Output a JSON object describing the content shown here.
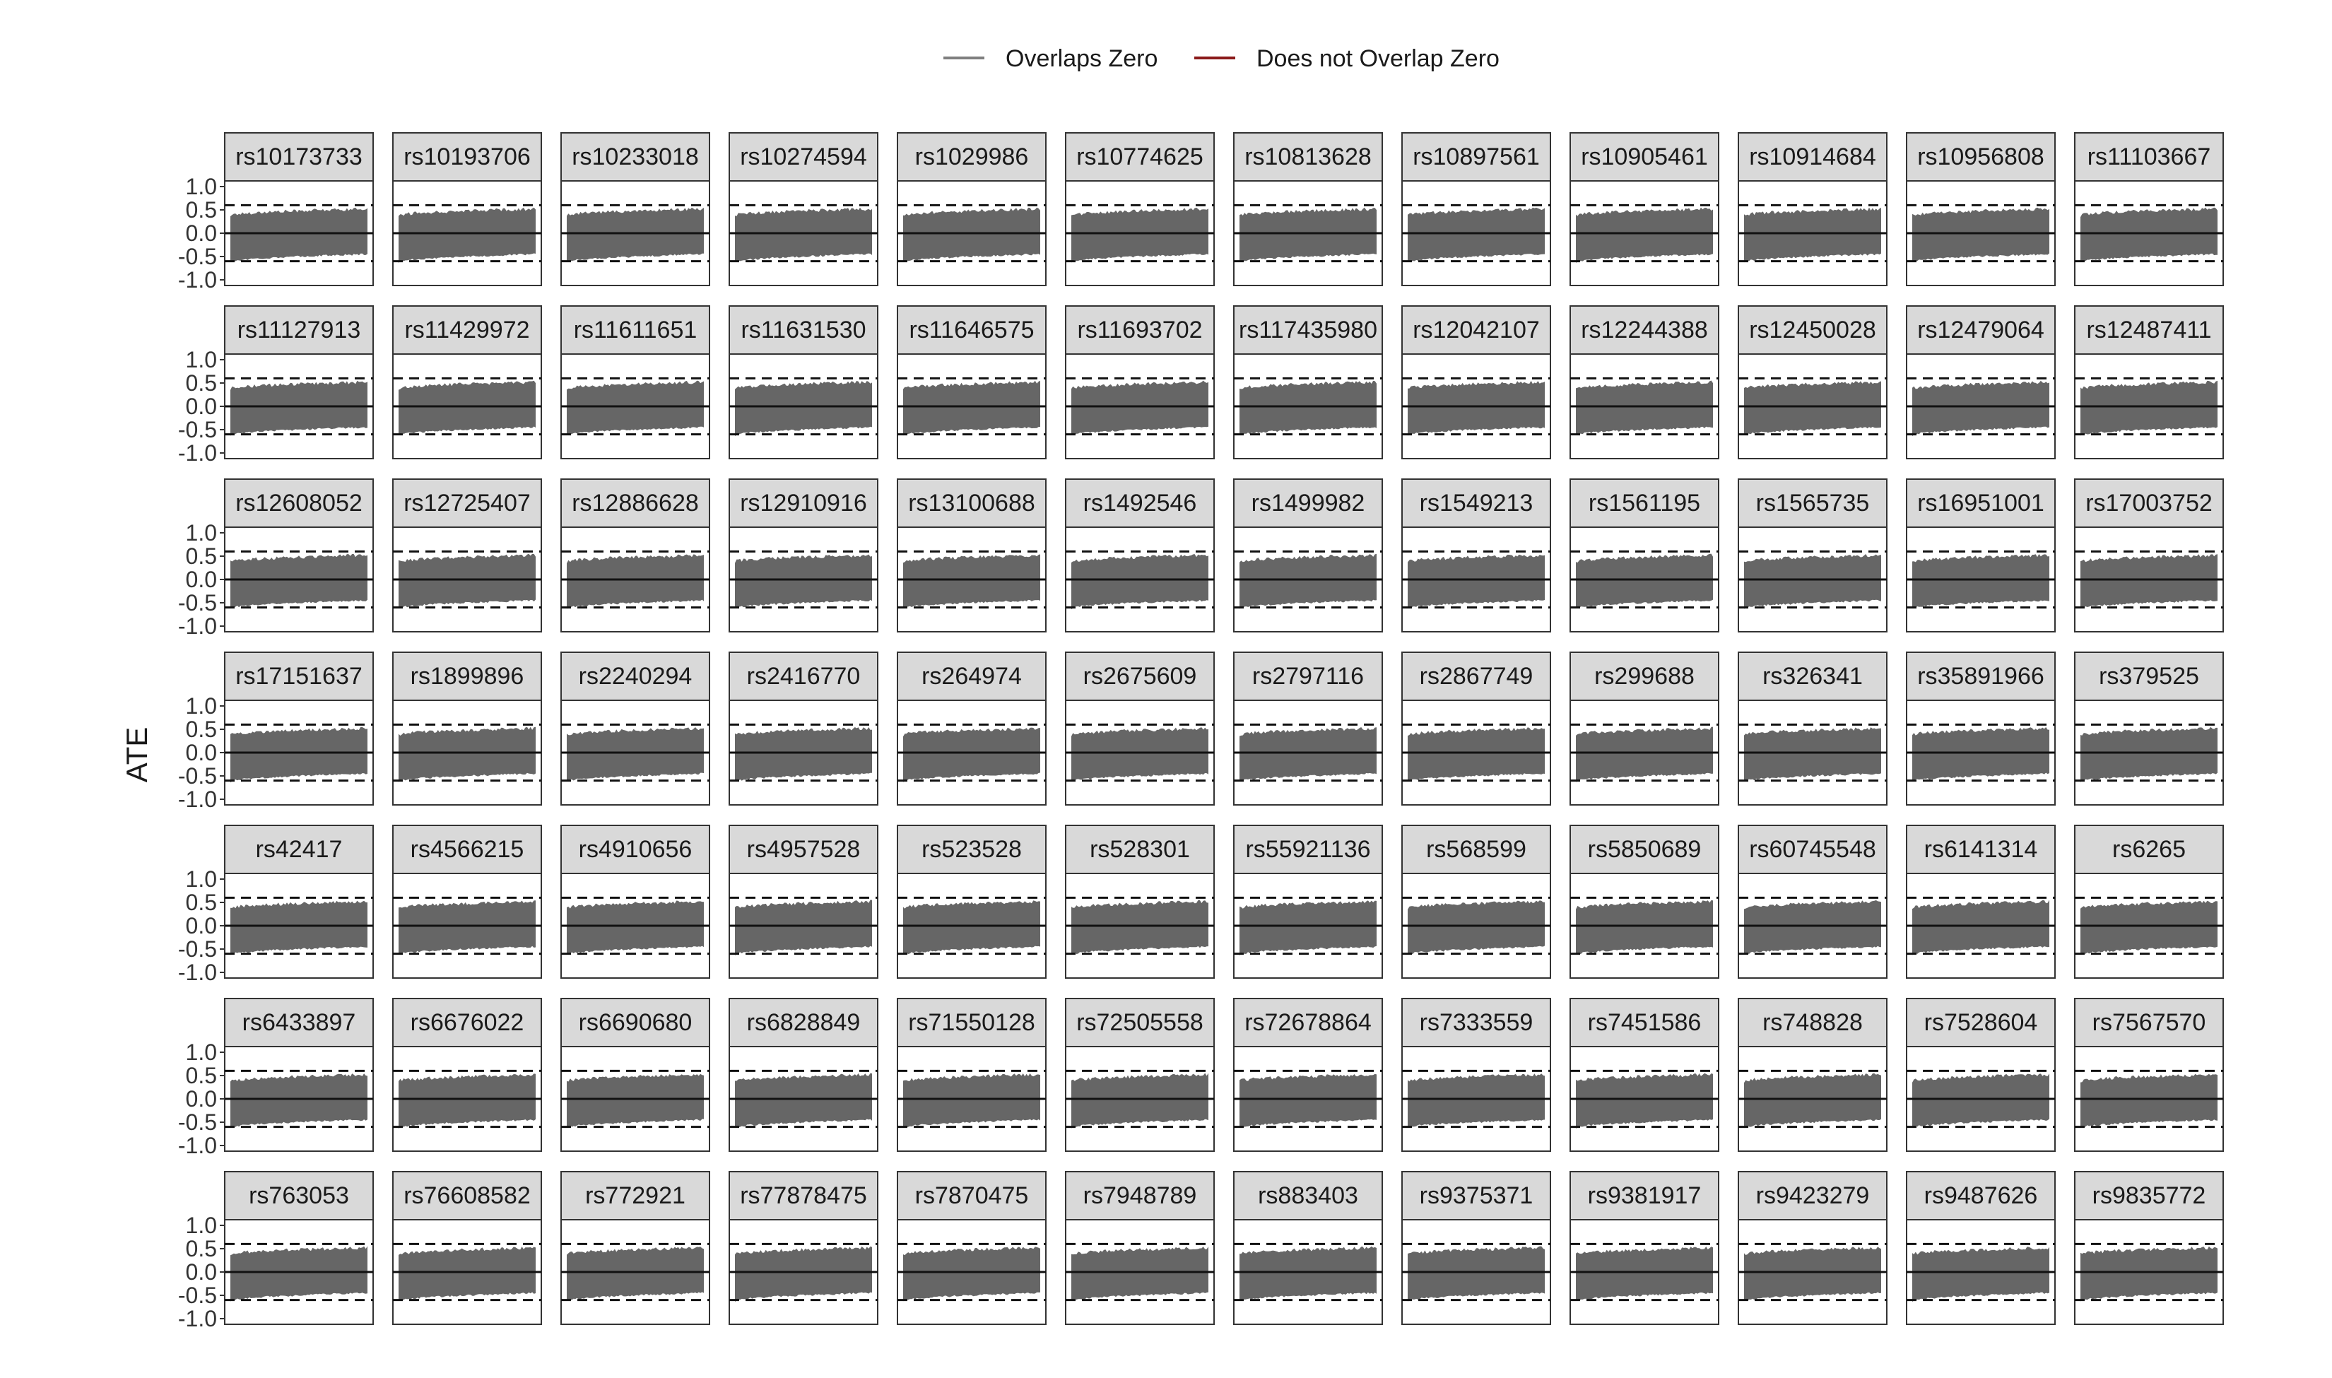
{
  "legend": {
    "items": [
      {
        "label": "Overlaps Zero",
        "color": "#7f7f7f"
      },
      {
        "label": "Does not Overlap Zero",
        "color": "#8b1a1a"
      }
    ]
  },
  "colors": {
    "band": "#666666",
    "strip": "#d9d9d9",
    "overlaps_zero": "#7f7f7f",
    "does_not_overlap_zero": "#8b1a1a"
  },
  "chart_data": {
    "type": "area",
    "ylabel": "ATE",
    "ylim": [
      -1.0,
      1.0
    ],
    "y_ticks": [
      "1.0",
      "0.5",
      "0.0",
      "-0.5",
      "-1.0"
    ],
    "y_tick_values": [
      1.0,
      0.5,
      0.0,
      -0.5,
      -1.0
    ],
    "reference_lines": {
      "solid": [
        0.0
      ],
      "dashed": [
        0.6,
        -0.6
      ]
    },
    "grid": false,
    "legend_position": "top",
    "series_style": "Overlaps Zero",
    "band_approx": {
      "upper": [
        0.38,
        0.52
      ],
      "lower": [
        -0.62,
        -0.45
      ]
    },
    "layout": {
      "columns": 12,
      "rows": 7
    },
    "panels": [
      "rs10173733",
      "rs10193706",
      "rs10233018",
      "rs10274594",
      "rs1029986",
      "rs10774625",
      "rs10813628",
      "rs10897561",
      "rs10905461",
      "rs10914684",
      "rs10956808",
      "rs11103667",
      "rs11127913",
      "rs11429972",
      "rs11611651",
      "rs11631530",
      "rs11646575",
      "rs11693702",
      "rs117435980",
      "rs12042107",
      "rs12244388",
      "rs12450028",
      "rs12479064",
      "rs12487411",
      "rs12608052",
      "rs12725407",
      "rs12886628",
      "rs12910916",
      "rs13100688",
      "rs1492546",
      "rs1499982",
      "rs1549213",
      "rs1561195",
      "rs1565735",
      "rs16951001",
      "rs17003752",
      "rs17151637",
      "rs1899896",
      "rs2240294",
      "rs2416770",
      "rs264974",
      "rs2675609",
      "rs2797116",
      "rs2867749",
      "rs299688",
      "rs326341",
      "rs35891966",
      "rs379525",
      "rs42417",
      "rs4566215",
      "rs4910656",
      "rs4957528",
      "rs523528",
      "rs528301",
      "rs55921136",
      "rs568599",
      "rs5850689",
      "rs60745548",
      "rs6141314",
      "rs6265",
      "rs6433897",
      "rs6676022",
      "rs6690680",
      "rs6828849",
      "rs71550128",
      "rs72505558",
      "rs72678864",
      "rs7333559",
      "rs7451586",
      "rs748828",
      "rs7528604",
      "rs7567570",
      "rs763053",
      "rs76608582",
      "rs772921",
      "rs77878475",
      "rs7870475",
      "rs7948789",
      "rs883403",
      "rs9375371",
      "rs9381917",
      "rs9423279",
      "rs9487626",
      "rs9835772"
    ]
  }
}
